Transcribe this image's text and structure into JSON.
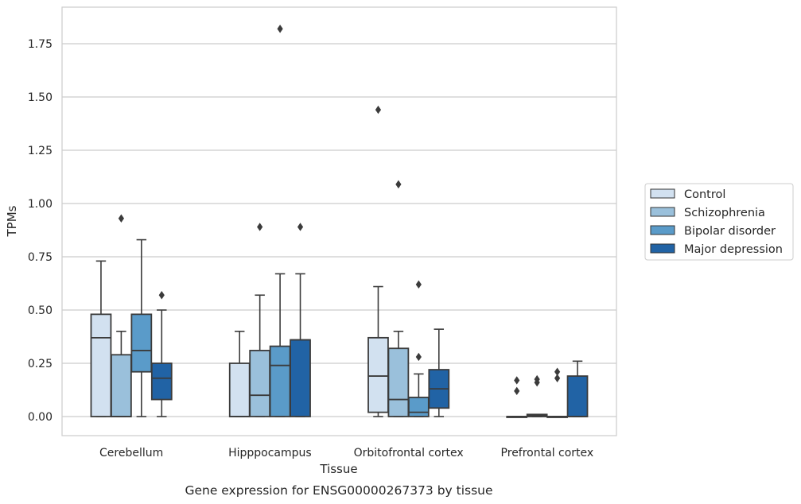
{
  "caption": "Gene expression for ENSG00000267373 by tissue",
  "chart_data": {
    "type": "boxplot",
    "xlabel": "Tissue",
    "ylabel": "TPMs",
    "ylim": [
      -0.09,
      1.92
    ],
    "yticks": [
      "0.00",
      "0.25",
      "0.50",
      "0.75",
      "1.00",
      "1.25",
      "1.50",
      "1.75"
    ],
    "grid": "horizontal",
    "legend_position": "right",
    "categories": [
      "Cerebellum",
      "Hipppocampus",
      "Orbitofrontal cortex",
      "Prefrontal cortex"
    ],
    "series": [
      {
        "name": "Control",
        "color": "#d2e1f0",
        "boxes": [
          {
            "whislo": 0.0,
            "q1": 0.0,
            "med": 0.37,
            "q3": 0.48,
            "whishi": 0.73,
            "fliers": []
          },
          {
            "whislo": 0.0,
            "q1": 0.0,
            "med": 0.0,
            "q3": 0.25,
            "whishi": 0.4,
            "fliers": []
          },
          {
            "whislo": 0.0,
            "q1": 0.02,
            "med": 0.19,
            "q3": 0.37,
            "whishi": 0.61,
            "fliers": [
              1.44
            ]
          },
          {
            "whislo": 0.0,
            "q1": 0.0,
            "med": 0.0,
            "q3": 0.0,
            "whishi": 0.0,
            "fliers": [
              0.12,
              0.17
            ]
          }
        ]
      },
      {
        "name": "Schizophrenia",
        "color": "#9ac0db",
        "boxes": [
          {
            "whislo": 0.0,
            "q1": 0.0,
            "med": 0.0,
            "q3": 0.29,
            "whishi": 0.4,
            "fliers": [
              0.93
            ]
          },
          {
            "whislo": 0.0,
            "q1": 0.0,
            "med": 0.1,
            "q3": 0.31,
            "whishi": 0.57,
            "fliers": [
              0.89
            ]
          },
          {
            "whislo": 0.0,
            "q1": 0.0,
            "med": 0.08,
            "q3": 0.32,
            "whishi": 0.4,
            "fliers": [
              1.09
            ]
          },
          {
            "whislo": 0.0,
            "q1": 0.0,
            "med": 0.005,
            "q3": 0.01,
            "whishi": 0.01,
            "fliers": [
              0.16,
              0.175
            ]
          }
        ]
      },
      {
        "name": "Bipolar disorder",
        "color": "#5a9bc9",
        "boxes": [
          {
            "whislo": 0.0,
            "q1": 0.21,
            "med": 0.31,
            "q3": 0.48,
            "whishi": 0.83,
            "fliers": []
          },
          {
            "whislo": 0.0,
            "q1": 0.0,
            "med": 0.24,
            "q3": 0.33,
            "whishi": 0.67,
            "fliers": [
              1.82
            ]
          },
          {
            "whislo": 0.0,
            "q1": 0.0,
            "med": 0.02,
            "q3": 0.09,
            "whishi": 0.2,
            "fliers": [
              0.28,
              0.62
            ]
          },
          {
            "whislo": 0.0,
            "q1": 0.0,
            "med": 0.0,
            "q3": 0.0,
            "whishi": 0.0,
            "fliers": [
              0.18,
              0.21
            ]
          }
        ]
      },
      {
        "name": "Major depression",
        "color": "#2163a5",
        "boxes": [
          {
            "whislo": 0.0,
            "q1": 0.08,
            "med": 0.18,
            "q3": 0.25,
            "whishi": 0.5,
            "fliers": [
              0.57
            ]
          },
          {
            "whislo": 0.0,
            "q1": 0.0,
            "med": 0.36,
            "q3": 0.36,
            "whishi": 0.67,
            "fliers": [
              0.89
            ]
          },
          {
            "whislo": 0.0,
            "q1": 0.04,
            "med": 0.13,
            "q3": 0.22,
            "whishi": 0.41,
            "fliers": []
          },
          {
            "whislo": 0.0,
            "q1": 0.0,
            "med": 0.0,
            "q3": 0.19,
            "whishi": 0.26,
            "fliers": []
          }
        ]
      }
    ]
  }
}
